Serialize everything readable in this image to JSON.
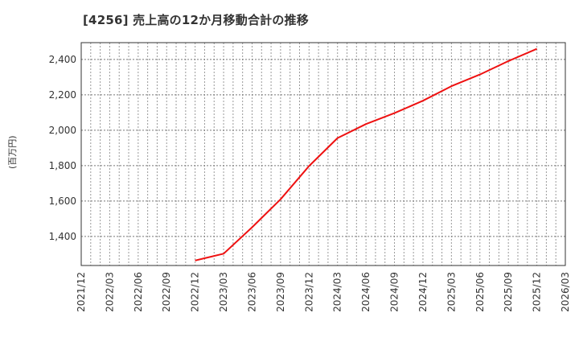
{
  "title": "[4256]  売上高の12か月移動合計の推移",
  "chart_data": {
    "type": "line",
    "title": "[4256]  売上高の12か月移動合計の推移",
    "xlabel": "",
    "ylabel": "(百万円)",
    "x_ticks": [
      "2021/12",
      "2022/03",
      "2022/06",
      "2022/09",
      "2022/12",
      "2023/03",
      "2023/06",
      "2023/09",
      "2023/12",
      "2024/03",
      "2024/06",
      "2024/09",
      "2024/12",
      "2025/03",
      "2025/06",
      "2025/09",
      "2025/12",
      "2026/03"
    ],
    "y_ticks": [
      1400,
      1600,
      1800,
      2000,
      2200,
      2400
    ],
    "y_tick_labels": [
      "1,400",
      "1,600",
      "1,800",
      "2,000",
      "2,200",
      "2,400"
    ],
    "xlim": [
      "2021/12",
      "2026/03"
    ],
    "ylim": [
      1236,
      2495
    ],
    "grid": true,
    "legend": null,
    "series": [
      {
        "name": "売上高(12か月移動合計)",
        "color": "#ee1111",
        "x": [
          "2022/12",
          "2023/03",
          "2023/06",
          "2023/09",
          "2023/12",
          "2024/03",
          "2024/06",
          "2024/09",
          "2024/12",
          "2025/03",
          "2025/06",
          "2025/09",
          "2025/12"
        ],
        "values": [
          1264,
          1303,
          1452,
          1610,
          1798,
          1956,
          2035,
          2097,
          2167,
          2249,
          2315,
          2391,
          2460
        ]
      }
    ]
  }
}
